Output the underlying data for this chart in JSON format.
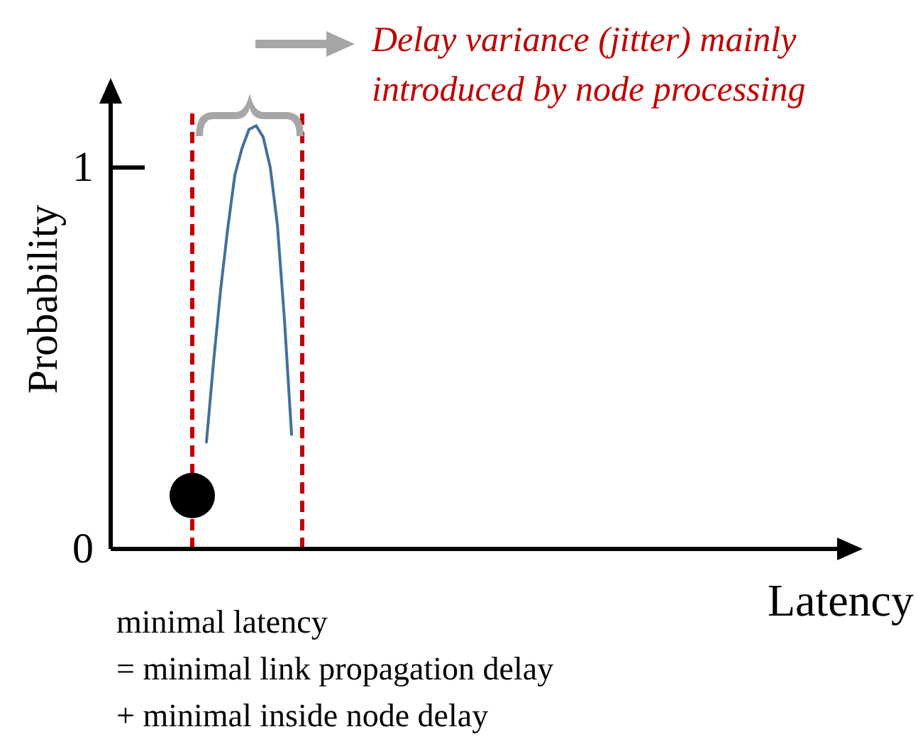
{
  "chart_data": {
    "type": "line",
    "xlabel": "Latency",
    "ylabel": "Probability",
    "categories": [
      null,
      null,
      null,
      null,
      null,
      null,
      null,
      null,
      null,
      null,
      null,
      null,
      null,
      null,
      null,
      null,
      null,
      null,
      null,
      null,
      null,
      null,
      null,
      null,
      null,
      null,
      null,
      null,
      null,
      null,
      null,
      null,
      null,
      null,
      null,
      null,
      null,
      null,
      null,
      null,
      null,
      null,
      null,
      null,
      null,
      null,
      null,
      null,
      null,
      null,
      null,
      null,
      null,
      null,
      null,
      null,
      null,
      null,
      null,
      null,
      null,
      null,
      null,
      null,
      null,
      null,
      null,
      null,
      null,
      null,
      null,
      null,
      null,
      null,
      null,
      null,
      null,
      null,
      null,
      null,
      null,
      null,
      null,
      null,
      null,
      null,
      null,
      null,
      null,
      null,
      null,
      null,
      null,
      null,
      null,
      null,
      null,
      null,
      null,
      null,
      null,
      null,
      null,
      null,
      null,
      null
    ],
    "ylim": [
      0,
      1.22
    ],
    "yticks": [
      0,
      1
    ],
    "grid": false,
    "series": [
      {
        "color": "#41719c",
        "marker": "none",
        "values": [
          null,
          null,
          null,
          null,
          null,
          null,
          null,
          null,
          null,
          null,
          null,
          null,
          null,
          0.28,
          0.49,
          0.68,
          0.84,
          0.98,
          1.05,
          1.1,
          1.11,
          1.08,
          1.0,
          0.85,
          0.6,
          0.3,
          null,
          null,
          null,
          null,
          null,
          null,
          null,
          null,
          null,
          null,
          null,
          null,
          null,
          null,
          null,
          null,
          null,
          null,
          null,
          null,
          null,
          null,
          null,
          null,
          null,
          null,
          null,
          null,
          null,
          null,
          null,
          null,
          null,
          null,
          null,
          null,
          null,
          null,
          null,
          null,
          null,
          null,
          null,
          null,
          null,
          null,
          null,
          null,
          null,
          null,
          null,
          null,
          null,
          null,
          null,
          null,
          null,
          null,
          null,
          null,
          null,
          null,
          null,
          null,
          null,
          null,
          null,
          null,
          null,
          null,
          null,
          null,
          null,
          null,
          null,
          null,
          null,
          null,
          null,
          null
        ]
      },
      {
        "type": "scatter",
        "color": "#000000",
        "marker": "circle",
        "values": [
          null,
          null,
          null,
          null,
          null,
          null,
          null,
          null,
          null,
          null,
          null,
          0.14,
          null,
          null,
          null,
          null,
          null,
          null,
          null,
          null,
          null,
          null,
          null,
          null,
          null,
          null,
          null,
          null,
          null,
          null,
          null,
          null,
          null,
          null,
          null,
          null,
          null,
          null,
          null,
          null,
          null,
          null,
          null,
          null,
          null,
          null,
          null,
          null,
          null,
          null,
          null,
          null,
          null,
          null,
          null,
          null,
          null,
          null,
          null,
          null,
          null,
          null,
          null,
          null,
          null,
          null,
          null,
          null,
          null,
          null,
          null,
          null,
          null,
          null,
          null,
          null,
          null,
          null,
          null,
          null,
          null,
          null,
          null,
          null,
          null,
          null,
          null,
          null,
          null,
          null,
          null,
          null,
          null,
          null,
          null,
          null,
          null,
          null,
          null,
          null,
          null,
          null,
          null,
          null,
          null,
          null
        ]
      }
    ],
    "annotations": [
      "Delay variance (jitter) mainly introduced by node processing",
      "minimal latency",
      "= minimal link propagation delay",
      "+ minimal inside node delay"
    ]
  }
}
